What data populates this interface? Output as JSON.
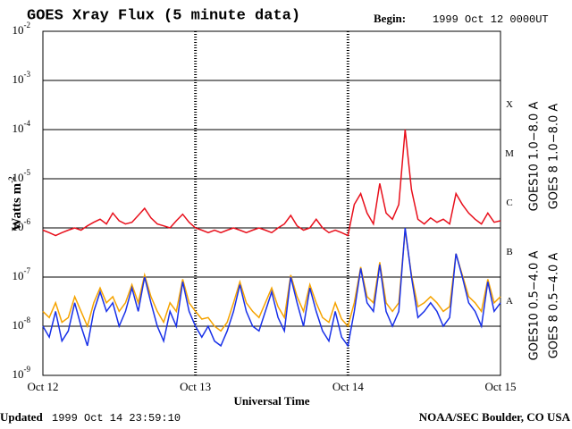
{
  "chart_data": {
    "type": "line",
    "title": "GOES Xray Flux (5 minute data)",
    "begin_label": "Begin:",
    "begin": "1999 Oct 12 0000UT",
    "x_label": "Universal Time",
    "y_label": "Watts m",
    "y_label_sup": "-2",
    "updated_label": "Updated",
    "updated": "1999 Oct 14 23:59:10",
    "credit": "NOAA/SEC Boulder, CO USA",
    "log_y": true,
    "grid": true,
    "xlim": [
      0,
      72
    ],
    "xticks": [
      {
        "value": 0,
        "label": "Oct 12"
      },
      {
        "value": 24,
        "label": "Oct 13"
      },
      {
        "value": 48,
        "label": "Oct 14"
      },
      {
        "value": 72,
        "label": "Oct 15"
      }
    ],
    "ylim": [
      1e-09,
      0.01
    ],
    "yticks": [
      {
        "value": 1e-09,
        "label": "10",
        "sup": "-9"
      },
      {
        "value": 1e-08,
        "label": "10",
        "sup": "-8"
      },
      {
        "value": 1e-07,
        "label": "10",
        "sup": "-7"
      },
      {
        "value": 1e-06,
        "label": "10",
        "sup": "-6"
      },
      {
        "value": 1e-05,
        "label": "10",
        "sup": "-5"
      },
      {
        "value": 0.0001,
        "label": "10",
        "sup": "-4"
      },
      {
        "value": 0.001,
        "label": "10",
        "sup": "-3"
      },
      {
        "value": 0.01,
        "label": "10",
        "sup": "-2"
      }
    ],
    "flare_classes": [
      {
        "label": "A",
        "value": 1e-08
      },
      {
        "label": "B",
        "value": 1e-07
      },
      {
        "label": "C",
        "value": 1e-06
      },
      {
        "label": "M",
        "value": 1e-05
      },
      {
        "label": "X",
        "value": 0.0001
      }
    ],
    "x": [
      0,
      1,
      2,
      3,
      4,
      5,
      6,
      7,
      8,
      9,
      10,
      11,
      12,
      13,
      14,
      15,
      16,
      17,
      18,
      19,
      20,
      21,
      22,
      23,
      24,
      25,
      26,
      27,
      28,
      29,
      30,
      31,
      32,
      33,
      34,
      35,
      36,
      37,
      38,
      39,
      40,
      41,
      42,
      43,
      44,
      45,
      46,
      47,
      48,
      49,
      50,
      51,
      52,
      53,
      54,
      55,
      56,
      57,
      58,
      59,
      60,
      61,
      62,
      63,
      64,
      65,
      66,
      67,
      68,
      69,
      70,
      71,
      72
    ],
    "series": [
      {
        "name": "GOES10 1.0−8.0 A",
        "color": "#7a1fa2",
        "values": [
          null,
          null,
          null,
          null,
          null,
          null,
          null,
          null,
          null,
          null,
          null,
          null,
          null,
          null,
          null,
          null,
          null,
          null,
          null,
          null,
          null,
          null,
          null,
          null,
          null,
          null,
          null,
          null,
          null,
          null,
          null,
          null,
          null,
          null,
          null,
          null,
          null,
          null,
          null,
          null,
          null,
          null,
          null,
          null,
          null,
          null,
          null,
          null,
          null,
          null,
          null,
          null,
          null,
          null,
          null,
          null,
          null,
          null,
          null,
          null,
          null,
          null,
          null,
          null,
          null,
          null,
          null,
          null,
          null,
          null,
          null,
          null,
          null
        ]
      },
      {
        "name": "GOES 8 1.0−8.0 A",
        "color": "#e8101c",
        "values": [
          9e-07,
          8e-07,
          7e-07,
          8e-07,
          9e-07,
          1e-06,
          9e-07,
          1.1e-06,
          1.3e-06,
          1.5e-06,
          1.2e-06,
          2e-06,
          1.4e-06,
          1.2e-06,
          1.3e-06,
          1.8e-06,
          2.5e-06,
          1.6e-06,
          1.2e-06,
          1.1e-06,
          1e-06,
          1.4e-06,
          1.9e-06,
          1.3e-06,
          1e-06,
          9e-07,
          8e-07,
          9e-07,
          8e-07,
          9e-07,
          1e-06,
          9e-07,
          8e-07,
          9e-07,
          1e-06,
          9e-07,
          8e-07,
          1e-06,
          1.2e-06,
          1.8e-06,
          1.1e-06,
          9e-07,
          1e-06,
          1.5e-06,
          1e-06,
          8e-07,
          9e-07,
          8e-07,
          7e-07,
          3e-06,
          5e-06,
          2e-06,
          1.2e-06,
          8e-06,
          2e-06,
          1.5e-06,
          3e-06,
          0.0001,
          6e-06,
          1.5e-06,
          1.2e-06,
          1.6e-06,
          1.3e-06,
          1.5e-06,
          1.2e-06,
          5e-06,
          3e-06,
          2e-06,
          1.5e-06,
          1.2e-06,
          2e-06,
          1.3e-06,
          1.4e-06
        ]
      },
      {
        "name": "GOES10 0.5−4.0 A",
        "color": "#f5a300",
        "values": [
          2e-08,
          1.5e-08,
          3e-08,
          1.2e-08,
          1.5e-08,
          4e-08,
          2e-08,
          1e-08,
          3e-08,
          6e-08,
          3e-08,
          4e-08,
          2e-08,
          3e-08,
          7e-08,
          3e-08,
          1.1e-07,
          4e-08,
          2e-08,
          1.2e-08,
          3e-08,
          2e-08,
          9e-08,
          3e-08,
          2e-08,
          1.4e-08,
          1.5e-08,
          1e-08,
          8e-09,
          1.2e-08,
          3e-08,
          8e-08,
          3e-08,
          2e-08,
          1.5e-08,
          3e-08,
          6e-08,
          2.5e-08,
          1.5e-08,
          1.1e-07,
          4e-08,
          2e-08,
          7e-08,
          3e-08,
          1.5e-08,
          1.2e-08,
          3e-08,
          1.4e-08,
          1e-08,
          3e-08,
          1.6e-07,
          4e-08,
          3e-08,
          2e-07,
          3e-08,
          2e-08,
          3e-08,
          9e-07,
          1.1e-07,
          2.5e-08,
          3e-08,
          4e-08,
          3e-08,
          2e-08,
          2.5e-08,
          3e-07,
          1.1e-07,
          4e-08,
          3e-08,
          2e-08,
          9e-08,
          3e-08,
          4e-08
        ]
      },
      {
        "name": "GOES 8 0.5−4.0 A",
        "color": "#1830e8",
        "values": [
          1e-08,
          6e-09,
          2e-08,
          5e-09,
          8e-09,
          3e-08,
          1e-08,
          4e-09,
          2e-08,
          5e-08,
          2e-08,
          3e-08,
          1e-08,
          2e-08,
          6e-08,
          2e-08,
          1e-07,
          3e-08,
          1e-08,
          5e-09,
          2e-08,
          1e-08,
          8e-08,
          2e-08,
          1e-08,
          6e-09,
          1e-08,
          5e-09,
          4e-09,
          8e-09,
          2e-08,
          7e-08,
          2e-08,
          1e-08,
          8e-09,
          2e-08,
          5e-08,
          1.5e-08,
          8e-09,
          1e-07,
          3e-08,
          1e-08,
          6e-08,
          2e-08,
          8e-09,
          5e-09,
          2e-08,
          6e-09,
          4e-09,
          2e-08,
          1.5e-07,
          3e-08,
          2e-08,
          1.8e-07,
          2e-08,
          1e-08,
          2e-08,
          1e-06,
          1e-07,
          1.5e-08,
          2e-08,
          3e-08,
          2e-08,
          1e-08,
          1.5e-08,
          3e-07,
          1e-07,
          3e-08,
          2e-08,
          1e-08,
          8e-08,
          2e-08,
          3e-08
        ]
      }
    ]
  }
}
